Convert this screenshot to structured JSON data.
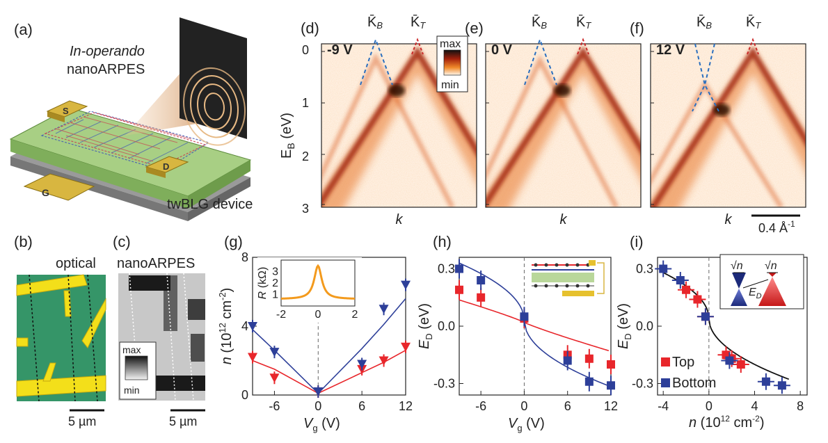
{
  "panels": {
    "a": {
      "label": "(a)",
      "title_italic": "In-operando",
      "title": "nanoARPES",
      "device": "twBLG device",
      "electrodes": [
        "S",
        "D",
        "G"
      ]
    },
    "arpes": [
      {
        "label": "(d)",
        "voltage": "-9 V",
        "voltage_color": "#e06c6c"
      },
      {
        "label": "(e)",
        "voltage": "0 V",
        "voltage_color": "#8a8a1f"
      },
      {
        "label": "(f)",
        "voltage": "12 V",
        "voltage_color": "#2b3f8f"
      }
    ],
    "arpes_common": {
      "kb": "K̄",
      "kb_sub": "B",
      "kt": "K̄",
      "kt_sub": "T",
      "ylabel": "E",
      "ylabel_sub": "B",
      "ylabel_unit": " (eV)",
      "yticks": [
        "0",
        "1",
        "2",
        "3"
      ],
      "xlabel": "k",
      "cbar_max": "max",
      "cbar_min": "min",
      "scalebar": "0.4 Å",
      "scalebar_sup": "-1"
    },
    "b": {
      "label": "(b)",
      "title": "optical",
      "scalebar": "5 µm"
    },
    "c": {
      "label": "(c)",
      "title": "nanoARPES",
      "scalebar": "5 µm",
      "cbar_max": "max",
      "cbar_min": "min"
    },
    "g": {
      "label": "(g)",
      "ylabel": "n (10",
      "ylabel_sup": "12",
      "ylabel_end": " cm",
      "ylabel_sup2": "-2",
      "ylabel_close": ")",
      "xlabel": "V",
      "xlabel_sub": "g",
      "xlabel_unit": " (V)",
      "xticks": [
        "-6",
        "0",
        "6",
        "12"
      ],
      "yticks": [
        "0",
        "4",
        "8"
      ],
      "inset_ylabel": "R",
      "inset_ylabel_unit": " (kΩ)",
      "inset_yticks": [
        "1",
        "2",
        "3"
      ],
      "inset_xticks": [
        "-2",
        "0",
        "2"
      ]
    },
    "h": {
      "label": "(h)",
      "ylabel": "E",
      "ylabel_sub": "D",
      "ylabel_unit": " (eV)",
      "xlabel": "V",
      "xlabel_sub": "g",
      "xlabel_unit": " (V)",
      "xticks": [
        "-6",
        "0",
        "6",
        "12"
      ],
      "yticks": [
        "0.3",
        "0.0",
        "-0.3"
      ]
    },
    "i": {
      "label": "(i)",
      "ylabel": "E",
      "ylabel_sub": "D",
      "ylabel_unit": " (eV)",
      "xlabel": "n (10",
      "xlabel_sup": "12",
      "xlabel_end": " cm",
      "xlabel_sup2": "-2",
      "xlabel_close": ")",
      "xticks": [
        "-4",
        "0",
        "4",
        "8"
      ],
      "yticks": [
        "0.3",
        "0.0",
        "-0.3"
      ],
      "legend": [
        "Top",
        "Bottom"
      ],
      "inset_sqrt": "√n",
      "inset_ed": "E",
      "inset_ed_sub": "D"
    }
  },
  "colors": {
    "top": "#e8262b",
    "bottom": "#2d3f99",
    "arpes_dash_b": "#2a6fbf",
    "arpes_dash_t": "#cc2a2a"
  },
  "chart_data": [
    {
      "type": "scatter",
      "panel": "g",
      "xlim": [
        -9,
        12
      ],
      "ylim": [
        0,
        8
      ],
      "series": [
        {
          "values": [
            [
              -9,
              2.2
            ],
            [
              -6,
              1.0
            ],
            [
              0,
              0.2
            ],
            [
              6,
              1.5
            ],
            [
              9,
              2.0
            ],
            [
              12,
              2.8
            ]
          ]
        },
        {
          "values": [
            [
              -9,
              4.0
            ],
            [
              -6,
              2.5
            ],
            [
              0,
              0.2
            ],
            [
              6,
              1.8
            ],
            [
              9,
              5.0
            ],
            [
              12,
              6.4
            ]
          ]
        }
      ]
    },
    {
      "type": "line",
      "panel": "g-inset",
      "xlim": [
        -2,
        2
      ],
      "ylim": [
        0,
        4
      ]
    },
    {
      "type": "scatter",
      "panel": "h",
      "xlim": [
        -9,
        12
      ],
      "ylim": [
        -0.36,
        0.36
      ],
      "series": [
        {
          "values": [
            [
              -9,
              0.19
            ],
            [
              -6,
              0.15
            ],
            [
              0,
              0.04
            ],
            [
              6,
              -0.15
            ],
            [
              9,
              -0.17
            ],
            [
              12,
              -0.2
            ]
          ]
        },
        {
          "values": [
            [
              -9,
              0.3
            ],
            [
              -6,
              0.24
            ],
            [
              0,
              0.05
            ],
            [
              6,
              -0.18
            ],
            [
              9,
              -0.29
            ],
            [
              12,
              -0.31
            ]
          ]
        }
      ]
    },
    {
      "type": "scatter",
      "panel": "i",
      "xlim": [
        -4,
        8
      ],
      "ylim": [
        -0.36,
        0.36
      ],
      "series": [
        {
          "name": "Top",
          "values": [
            [
              -2.0,
              0.19
            ],
            [
              -1.0,
              0.14
            ],
            [
              -0.3,
              0.05
            ],
            [
              1.5,
              -0.15
            ],
            [
              2.0,
              -0.17
            ],
            [
              2.8,
              -0.2
            ]
          ]
        },
        {
          "name": "Bottom",
          "values": [
            [
              -4.0,
              0.3
            ],
            [
              -2.5,
              0.24
            ],
            [
              -0.3,
              0.05
            ],
            [
              1.8,
              -0.18
            ],
            [
              5.0,
              -0.29
            ],
            [
              6.4,
              -0.31
            ]
          ]
        }
      ]
    }
  ]
}
